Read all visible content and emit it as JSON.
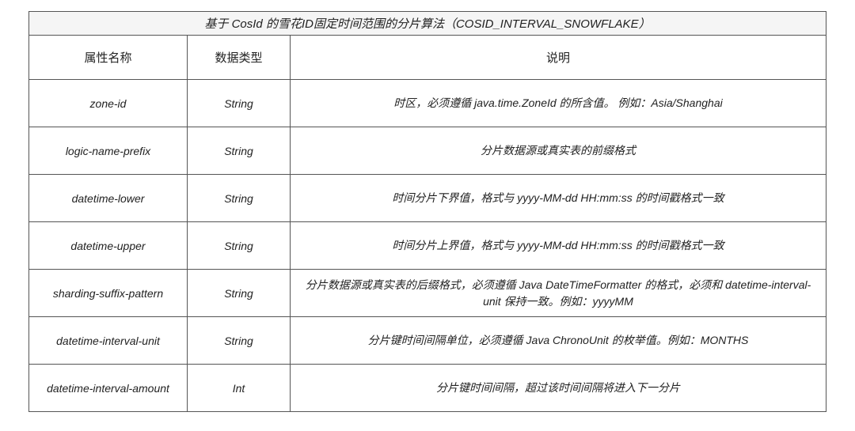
{
  "style": {
    "border_color": "#555555",
    "text_color": "#222222",
    "title_bg": "#f5f5f5",
    "body_bg": "#ffffff",
    "font_size_title": 15,
    "font_size_header": 15,
    "font_size_cell": 14
  },
  "table": {
    "title": "基于 CosId 的雪花ID固定时间范围的分片算法（COSID_INTERVAL_SNOWFLAKE）",
    "columns": [
      "属性名称",
      "数据类型",
      "说明"
    ],
    "rows": [
      {
        "name": "zone-id",
        "type": "String",
        "desc": "时区，必须遵循 java.time.ZoneId 的所含值。 例如：Asia/Shanghai"
      },
      {
        "name": "logic-name-prefix",
        "type": "String",
        "desc": "分片数据源或真实表的前缀格式"
      },
      {
        "name": "datetime-lower",
        "type": "String",
        "desc": "时间分片下界值，格式与 yyyy-MM-dd HH:mm:ss 的时间戳格式一致"
      },
      {
        "name": "datetime-upper",
        "type": "String",
        "desc": "时间分片上界值，格式与 yyyy-MM-dd HH:mm:ss 的时间戳格式一致"
      },
      {
        "name": "sharding-suffix-pattern",
        "type": "String",
        "desc": "分片数据源或真实表的后缀格式，必须遵循 Java DateTimeFormatter 的格式，必须和 datetime-interval-unit 保持一致。例如：yyyyMM"
      },
      {
        "name": "datetime-interval-unit",
        "type": "String",
        "desc": "分片键时间间隔单位，必须遵循 Java ChronoUnit 的枚举值。例如：MONTHS"
      },
      {
        "name": "datetime-interval-amount",
        "type": "Int",
        "desc": "分片键时间间隔，超过该时间间隔将进入下一分片"
      }
    ]
  }
}
